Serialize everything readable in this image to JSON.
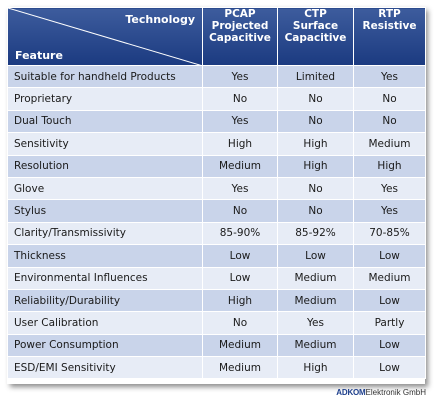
{
  "table": {
    "corner_top": "Technology",
    "corner_bottom": "Feature",
    "columns": [
      {
        "line1": "PCAP",
        "line2": "Projected",
        "line3": "Capacitive"
      },
      {
        "line1": "CTP",
        "line2": "Surface",
        "line3": "Capacitive"
      },
      {
        "line1": "RTP",
        "line2": "Resistive"
      }
    ],
    "rows": [
      {
        "feature": "Suitable for handheld Products",
        "values": [
          "Yes",
          "Limited",
          "Yes"
        ]
      },
      {
        "feature": "Proprietary",
        "values": [
          "No",
          "No",
          "No"
        ]
      },
      {
        "feature": "Dual Touch",
        "values": [
          "Yes",
          "No",
          "No"
        ]
      },
      {
        "feature": "Sensitivity",
        "values": [
          "High",
          "High",
          "Medium"
        ]
      },
      {
        "feature": "Resolution",
        "values": [
          "Medium",
          "High",
          "High"
        ]
      },
      {
        "feature": "Glove",
        "values": [
          "Yes",
          "No",
          "Yes"
        ]
      },
      {
        "feature": "Stylus",
        "values": [
          "No",
          "No",
          "Yes"
        ]
      },
      {
        "feature": "Clarity/Transmissivity",
        "values": [
          "85-90%",
          "85-92%",
          "70-85%"
        ]
      },
      {
        "feature": "Thickness",
        "values": [
          "Low",
          "Low",
          "Low"
        ]
      },
      {
        "feature": "Environmental Influences",
        "values": [
          "Low",
          "Medium",
          "Medium"
        ]
      },
      {
        "feature": "Reliability/Durability",
        "values": [
          "High",
          "Medium",
          "Low"
        ]
      },
      {
        "feature": "User Calibration",
        "values": [
          "No",
          "Yes",
          "Partly"
        ]
      },
      {
        "feature": "Power Consumption",
        "values": [
          "Medium",
          "Medium",
          "Low"
        ]
      },
      {
        "feature": "ESD/EMI Sensitivity",
        "values": [
          "Medium",
          "High",
          "Low"
        ]
      }
    ]
  },
  "brand": {
    "logo": "ADKOM",
    "rest": "Elektronik GmbH"
  },
  "colors": {
    "header": "#1b3a80",
    "row_odd": "#c9d4ea",
    "row_even": "#e7ecf6"
  }
}
